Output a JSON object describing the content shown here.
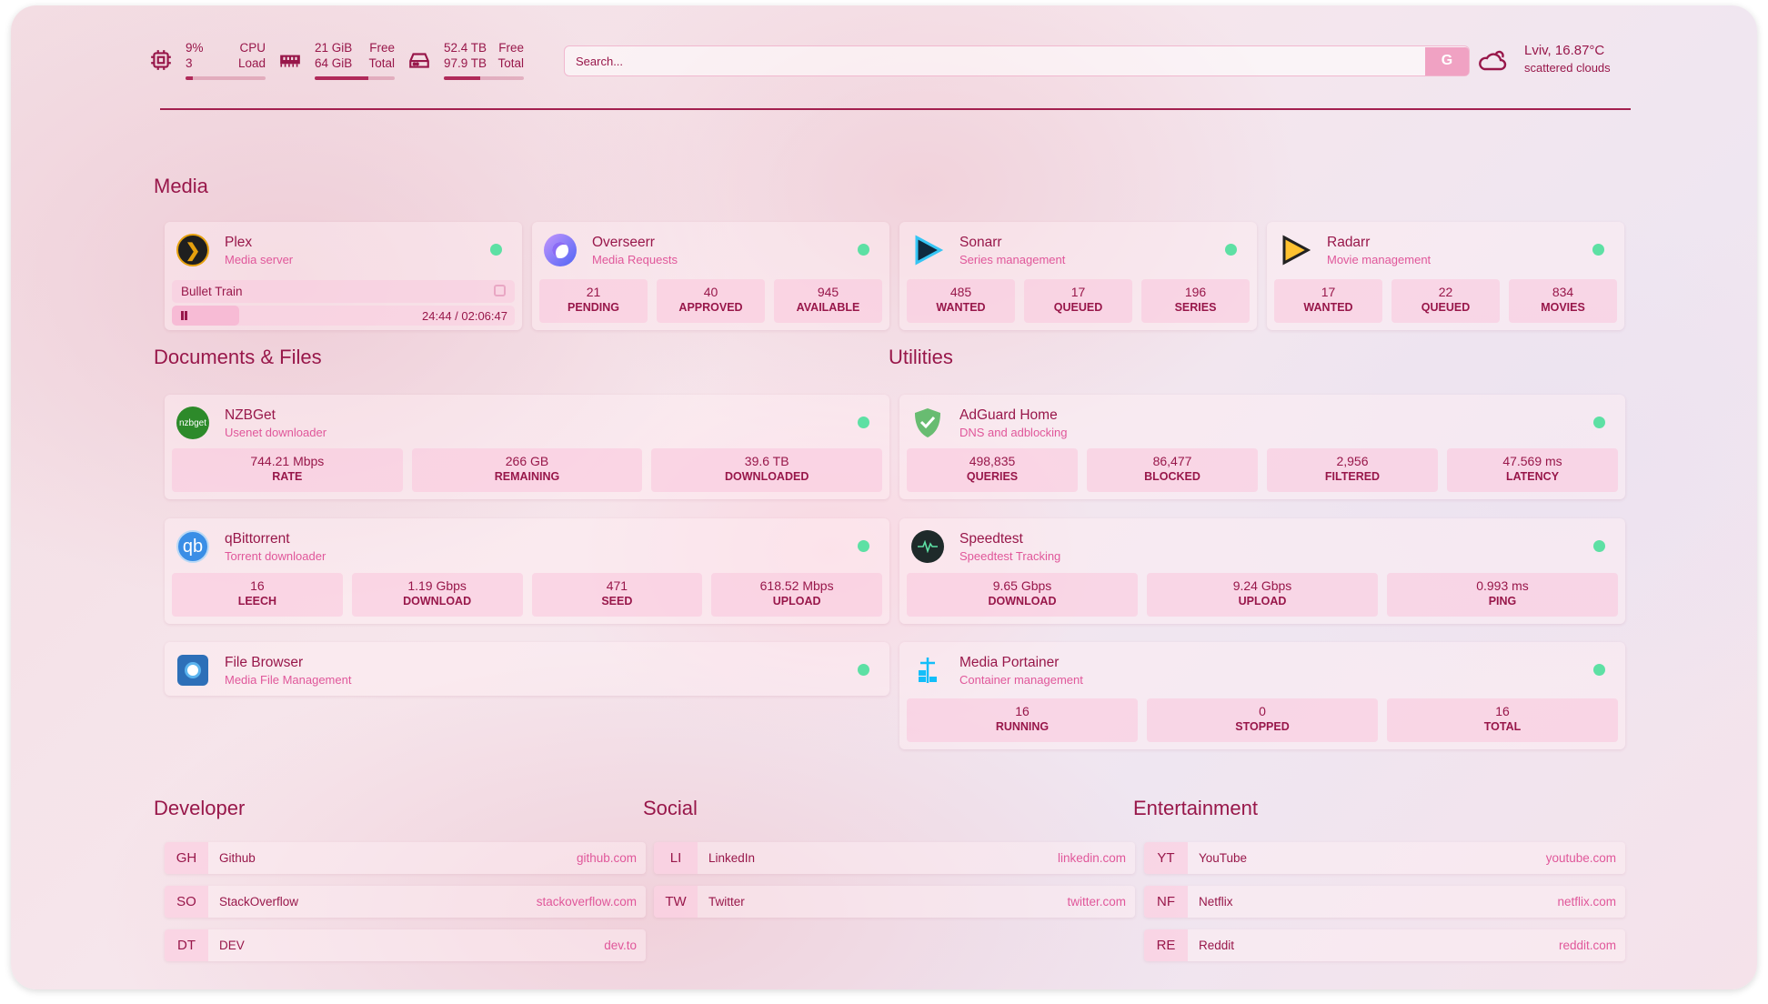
{
  "header": {
    "cpu": {
      "value": "9%",
      "label1": "CPU",
      "cores": "3",
      "label2": "Load",
      "usage_fraction": 0.09
    },
    "memory": {
      "free": "21 GiB",
      "label1": "Free",
      "total": "64 GiB",
      "label2": "Total",
      "used_fraction": 0.67
    },
    "disk": {
      "free": "52.4 TB",
      "label1": "Free",
      "total": "97.9 TB",
      "label2": "Total",
      "used_fraction": 0.46
    },
    "search": {
      "placeholder": "Search...",
      "engine_button": "G"
    },
    "weather": {
      "location_temp": "Lviv, 16.87°C",
      "condition": "scattered clouds",
      "icon": "cloud-sun-icon"
    }
  },
  "sections": {
    "media": "Media",
    "documents": "Documents & Files",
    "utilities": "Utilities",
    "developer": "Developer",
    "social": "Social",
    "entertainment": "Entertainment"
  },
  "media_cards": [
    {
      "name": "Plex",
      "desc": "Media server",
      "status": "online",
      "now_playing": {
        "title": "Bullet Train",
        "time": "24:44 / 02:06:47",
        "progress": 0.195,
        "state": "paused"
      }
    },
    {
      "name": "Overseerr",
      "desc": "Media Requests",
      "status": "online",
      "stats": [
        {
          "v": "21",
          "l": "PENDING"
        },
        {
          "v": "40",
          "l": "APPROVED"
        },
        {
          "v": "945",
          "l": "AVAILABLE"
        }
      ]
    },
    {
      "name": "Sonarr",
      "desc": "Series management",
      "status": "online",
      "stats": [
        {
          "v": "485",
          "l": "WANTED"
        },
        {
          "v": "17",
          "l": "QUEUED"
        },
        {
          "v": "196",
          "l": "SERIES"
        }
      ]
    },
    {
      "name": "Radarr",
      "desc": "Movie management",
      "status": "online",
      "stats": [
        {
          "v": "17",
          "l": "WANTED"
        },
        {
          "v": "22",
          "l": "QUEUED"
        },
        {
          "v": "834",
          "l": "MOVIES"
        }
      ]
    }
  ],
  "doc_cards": [
    {
      "name": "NZBGet",
      "desc": "Usenet downloader",
      "logo_text": "nzbget",
      "status": "online",
      "stats": [
        {
          "v": "744.21 Mbps",
          "l": "RATE"
        },
        {
          "v": "266 GB",
          "l": "REMAINING"
        },
        {
          "v": "39.6 TB",
          "l": "DOWNLOADED"
        }
      ]
    },
    {
      "name": "qBittorrent",
      "desc": "Torrent downloader",
      "logo_text": "qb",
      "status": "online",
      "stats": [
        {
          "v": "16",
          "l": "LEECH"
        },
        {
          "v": "1.19 Gbps",
          "l": "DOWNLOAD"
        },
        {
          "v": "471",
          "l": "SEED"
        },
        {
          "v": "618.52 Mbps",
          "l": "UPLOAD"
        }
      ]
    },
    {
      "name": "File Browser",
      "desc": "Media File Management",
      "status": "online"
    }
  ],
  "util_cards": [
    {
      "name": "AdGuard Home",
      "desc": "DNS and adblocking",
      "stats": [
        {
          "v": "498,835",
          "l": "QUERIES"
        },
        {
          "v": "86,477",
          "l": "BLOCKED"
        },
        {
          "v": "2,956",
          "l": "FILTERED"
        },
        {
          "v": "47.569 ms",
          "l": "LATENCY"
        }
      ]
    },
    {
      "name": "Speedtest",
      "desc": "Speedtest Tracking",
      "stats": [
        {
          "v": "9.65 Gbps",
          "l": "DOWNLOAD"
        },
        {
          "v": "9.24 Gbps",
          "l": "UPLOAD"
        },
        {
          "v": "0.993 ms",
          "l": "PING"
        }
      ]
    },
    {
      "name": "Media Portainer",
      "desc": "Container management",
      "status": "online",
      "stats": [
        {
          "v": "16",
          "l": "RUNNING"
        },
        {
          "v": "0",
          "l": "STOPPED"
        },
        {
          "v": "16",
          "l": "TOTAL"
        }
      ]
    }
  ],
  "bookmarks": {
    "developer": [
      {
        "abbr": "GH",
        "name": "Github",
        "url": "github.com"
      },
      {
        "abbr": "SO",
        "name": "StackOverflow",
        "url": "stackoverflow.com"
      },
      {
        "abbr": "DT",
        "name": "DEV",
        "url": "dev.to"
      }
    ],
    "social": [
      {
        "abbr": "LI",
        "name": "LinkedIn",
        "url": "linkedin.com"
      },
      {
        "abbr": "TW",
        "name": "Twitter",
        "url": "twitter.com"
      }
    ],
    "entertainment": [
      {
        "abbr": "YT",
        "name": "YouTube",
        "url": "youtube.com"
      },
      {
        "abbr": "NF",
        "name": "Netflix",
        "url": "netflix.com"
      },
      {
        "abbr": "RE",
        "name": "Reddit",
        "url": "reddit.com"
      }
    ]
  },
  "colors": {
    "accent": "#98174a",
    "subtitle": "#e0579a",
    "status_online": "#5de0a4",
    "divider": "#a3204f"
  }
}
